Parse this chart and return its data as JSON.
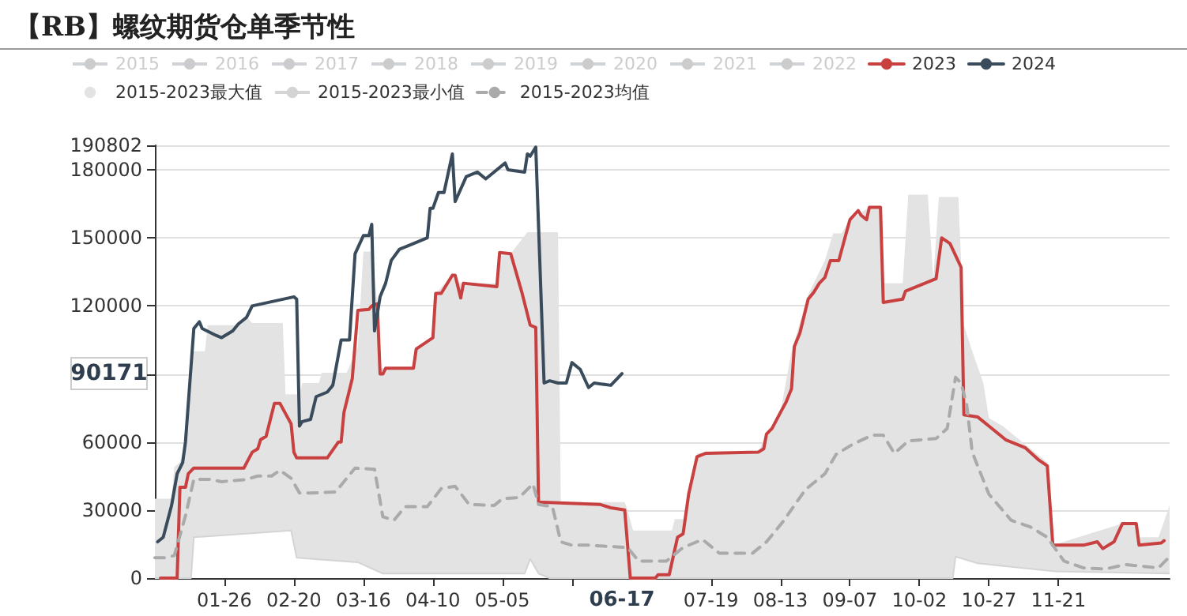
{
  "chart_data": {
    "type": "line",
    "title": "【RB】螺纹期货仓单季节性",
    "xlim": [
      "--01-01",
      "--12-31"
    ],
    "xticks": [
      {
        "value": "--01-26",
        "label": "01-26"
      },
      {
        "value": "--02-20",
        "label": "02-20"
      },
      {
        "value": "--03-16",
        "label": "03-16"
      },
      {
        "value": "--04-10",
        "label": "04-10"
      },
      {
        "value": "--05-05",
        "label": "05-05"
      },
      {
        "value": "--05-30",
        "label": null
      },
      {
        "value": "--07-19",
        "label": "07-19"
      },
      {
        "value": "--08-13",
        "label": "08-13"
      },
      {
        "value": "--09-07",
        "label": "09-07"
      },
      {
        "value": "--10-02",
        "label": "10-02"
      },
      {
        "value": "--10-27",
        "label": "10-27"
      },
      {
        "value": "--11-21",
        "label": "11-21"
      }
    ],
    "ylim": [
      0,
      190802
    ],
    "yticks": [
      0,
      30000,
      60000,
      {
        "value": 90000,
        "label": null
      },
      120000,
      150000,
      180000,
      190802
    ],
    "grid": "y",
    "legend": "top",
    "marker": "none",
    "annotations": [
      "90171",
      "06-17"
    ],
    "series": [
      {
        "name": "2015",
        "color": "#cccccc"
      },
      {
        "name": "2016",
        "color": "#cccccc"
      },
      {
        "name": "2017",
        "color": "#cccccc"
      },
      {
        "name": "2018",
        "color": "#cccccc"
      },
      {
        "name": "2019",
        "color": "#cccccc"
      },
      {
        "name": "2020",
        "color": "#cccccc"
      },
      {
        "name": "2021",
        "color": "#cccccc"
      },
      {
        "name": "2022",
        "color": "#cccccc"
      },
      {
        "name": "2023",
        "color": "#c94040",
        "x": [
          "--01-03",
          "--01-09",
          "--01-10",
          "--01-12",
          "--01-13",
          "--01-15",
          "--02-02",
          "--02-05",
          "--02-07",
          "--02-08",
          "--02-10",
          "--02-13",
          "--02-15",
          "--02-19",
          "--02-20",
          "--02-21",
          "--03-03",
          "--03-07",
          "--03-08",
          "--03-09",
          "--03-12",
          "--03-14",
          "--03-18",
          "--03-19",
          "--03-21",
          "--03-22",
          "--03-23",
          "--03-24",
          "--04-03",
          "--04-04",
          "--04-10",
          "--04-11",
          "--04-13",
          "--04-17",
          "--04-18",
          "--04-20",
          "--04-21",
          "--05-03",
          "--05-04",
          "--05-08",
          "--05-12",
          "--05-15",
          "--05-17",
          "--05-18",
          "--06-09",
          "--06-13",
          "--06-18",
          "--06-20",
          "--06-29",
          "--06-30",
          "--07-04",
          "--07-07",
          "--07-09",
          "--07-11",
          "--07-14",
          "--07-17",
          "--08-05",
          "--08-07",
          "--08-08",
          "--08-10",
          "--08-13",
          "--08-15",
          "--08-17",
          "--08-18",
          "--08-20",
          "--08-23",
          "--08-25",
          "--08-27",
          "--08-29",
          "--08-31",
          "--09-03",
          "--09-05",
          "--09-07",
          "--09-10",
          "--09-11",
          "--09-13",
          "--09-14",
          "--09-18",
          "--09-19",
          "--09-26",
          "--09-27",
          "--10-08",
          "--10-10",
          "--10-13",
          "--10-17",
          "--10-18",
          "--10-23",
          "--10-27",
          "--11-02",
          "--11-05",
          "--11-09",
          "--11-14",
          "--11-17",
          "--11-19",
          "--11-30",
          "--12-05",
          "--12-07",
          "--12-11",
          "--12-14",
          "--12-19",
          "--12-20",
          "--12-28",
          "--12-29"
        ],
        "values": [
          0,
          0,
          40000,
          40000,
          46000,
          48500,
          48500,
          55500,
          57000,
          61000,
          62500,
          77000,
          77000,
          68000,
          55500,
          53000,
          53000,
          60000,
          60000,
          73000,
          88000,
          118000,
          118500,
          120000,
          121000,
          90000,
          90000,
          92500,
          92500,
          101000,
          106000,
          125500,
          125500,
          133500,
          133500,
          123500,
          130000,
          128500,
          143500,
          143000,
          126000,
          111500,
          110500,
          33500,
          32500,
          31000,
          30000,
          0,
          0,
          1500,
          1500,
          18000,
          19500,
          37000,
          53500,
          55000,
          55500,
          57000,
          63500,
          66000,
          73000,
          77500,
          83500,
          102000,
          108000,
          123000,
          126000,
          130000,
          132500,
          140000,
          140000,
          149000,
          158000,
          162000,
          160000,
          158000,
          163500,
          163500,
          121500,
          123000,
          126500,
          132000,
          150000,
          147500,
          137000,
          72000,
          71000,
          67000,
          61000,
          59500,
          57500,
          52000,
          49500,
          14500,
          14500,
          16000,
          13000,
          16000,
          24000,
          24000,
          14500,
          15500,
          16500
        ]
      },
      {
        "name": "2024",
        "color": "#3a4b5c",
        "x": [
          "--01-02",
          "--01-04",
          "--01-07",
          "--01-09",
          "--01-11",
          "--01-12",
          "--01-15",
          "--01-17",
          "--01-18",
          "--01-23",
          "--01-25",
          "--01-29",
          "--01-31",
          "--02-03",
          "--02-05",
          "--02-20",
          "--02-21",
          "--02-22",
          "--02-23",
          "--02-26",
          "--02-28",
          "--03-03",
          "--03-05",
          "--03-08",
          "--03-11",
          "--03-13",
          "--03-16",
          "--03-18",
          "--03-19",
          "--03-20",
          "--03-22",
          "--03-24",
          "--03-26",
          "--03-29",
          "--04-02",
          "--04-08",
          "--04-09",
          "--04-10",
          "--04-12",
          "--04-14",
          "--04-17",
          "--04-18",
          "--04-22",
          "--04-26",
          "--04-29",
          "--05-06",
          "--05-07",
          "--05-13",
          "--05-14",
          "--05-15",
          "--05-17",
          "--05-20",
          "--05-22",
          "--05-25",
          "--05-28",
          "--05-30",
          "--06-02",
          "--06-05",
          "--06-07",
          "--06-13",
          "--06-17"
        ],
        "values": [
          16000,
          18000,
          32000,
          46000,
          51000,
          60000,
          110000,
          113000,
          110000,
          107000,
          106000,
          109000,
          112000,
          115000,
          120000,
          124000,
          123000,
          67000,
          69000,
          70000,
          80000,
          82000,
          85000,
          105000,
          105000,
          143000,
          151000,
          151000,
          156000,
          109000,
          124000,
          130000,
          140000,
          145000,
          147000,
          150000,
          163000,
          163000,
          170000,
          170000,
          187000,
          166000,
          177000,
          179000,
          176000,
          183000,
          180000,
          179000,
          187000,
          186000,
          190000,
          86000,
          87000,
          86000,
          86000,
          95000,
          92000,
          84000,
          86000,
          85000,
          90171
        ]
      },
      {
        "name": "2015-2023最大值",
        "type": "area",
        "color": "#e3e3e3",
        "x": [
          "--01-01",
          "--01-07",
          "--01-08",
          "--01-10",
          "--01-11",
          "--01-15",
          "--01-19",
          "--01-20",
          "--02-01",
          "--02-03",
          "--02-05",
          "--02-16",
          "--02-17",
          "--02-22",
          "--02-23",
          "--02-29",
          "--03-01",
          "--03-10",
          "--03-14",
          "--03-16",
          "--03-19",
          "--03-21",
          "--03-22",
          "--04-03",
          "--04-04",
          "--04-10",
          "--04-11",
          "--04-17",
          "--04-20",
          "--05-03",
          "--05-04",
          "--05-08",
          "--05-14",
          "--05-25",
          "--05-26",
          "--06-18",
          "--06-19",
          "--06-21",
          "--07-05",
          "--07-06",
          "--07-10",
          "--07-11",
          "--07-14",
          "--08-05",
          "--08-08",
          "--08-13",
          "--08-17",
          "--08-23",
          "--08-29",
          "--09-01",
          "--09-04",
          "--09-07",
          "--09-14",
          "--09-18",
          "--09-19",
          "--09-26",
          "--09-28",
          "--10-05",
          "--10-07",
          "--10-09",
          "--10-16",
          "--10-18",
          "--10-21",
          "--10-25",
          "--10-27",
          "--11-01",
          "--11-17",
          "--11-19",
          "--12-14",
          "--12-19",
          "--12-20",
          "--12-27",
          "--12-31"
        ],
        "values": [
          35000,
          35000,
          49000,
          51000,
          55500,
          100000,
          100000,
          111500,
          111500,
          115000,
          112500,
          112500,
          81000,
          81000,
          86000,
          86000,
          90500,
          90500,
          102000,
          144000,
          144000,
          121000,
          92500,
          92500,
          101000,
          106000,
          125500,
          133500,
          130000,
          130000,
          143500,
          143000,
          152500,
          152500,
          33500,
          33500,
          30000,
          21000,
          21000,
          26000,
          26000,
          40000,
          55000,
          55500,
          63500,
          73000,
          100000,
          125000,
          140000,
          152000,
          152000,
          158000,
          163500,
          163500,
          130000,
          130000,
          169000,
          169000,
          132000,
          168000,
          168000,
          111500,
          100000,
          86000,
          70500,
          67000,
          51000,
          14500,
          24000,
          24000,
          18000,
          18000,
          32000
        ]
      },
      {
        "name": "2015-2023最小值",
        "type": "area",
        "color": "#d4d4d4",
        "x": [
          "--01-01",
          "--01-14",
          "--01-15",
          "--02-19",
          "--02-21",
          "--03-14",
          "--03-23",
          "--05-13",
          "--05-15",
          "--05-18",
          "--05-22",
          "--10-14",
          "--10-15",
          "--10-23",
          "--11-20",
          "--12-31"
        ],
        "values": [
          0,
          0,
          18000,
          21000,
          9000,
          7000,
          2000,
          2000,
          8500,
          2000,
          0,
          0,
          9500,
          6500,
          3000,
          2000
        ]
      },
      {
        "name": "2015-2023均值",
        "color": "#aaaaaa",
        "line_style": "dashed",
        "x": [
          "--01-01",
          "--01-05",
          "--01-08",
          "--01-12",
          "--01-15",
          "--01-21",
          "--01-25",
          "--02-03",
          "--02-07",
          "--02-12",
          "--02-15",
          "--02-19",
          "--02-22",
          "--02-26",
          "--03-06",
          "--03-10",
          "--03-13",
          "--03-20",
          "--03-23",
          "--03-27",
          "--03-31",
          "--04-08",
          "--04-13",
          "--04-18",
          "--04-23",
          "--05-02",
          "--05-05",
          "--05-11",
          "--05-16",
          "--05-18",
          "--05-23",
          "--05-26",
          "--05-30",
          "--06-05",
          "--06-19",
          "--06-23",
          "--07-03",
          "--07-09",
          "--07-16",
          "--07-22",
          "--08-03",
          "--08-08",
          "--08-14",
          "--08-22",
          "--08-29",
          "--09-02",
          "--09-08",
          "--09-15",
          "--09-19",
          "--09-23",
          "--09-28",
          "--10-08",
          "--10-12",
          "--10-15",
          "--10-17",
          "--10-19",
          "--10-21",
          "--10-27",
          "--11-04",
          "--11-11",
          "--11-17",
          "--11-23",
          "--11-30",
          "--12-08",
          "--12-15",
          "--12-27",
          "--12-31"
        ],
        "values": [
          9000,
          9000,
          10000,
          27500,
          43500,
          43500,
          42500,
          43500,
          45000,
          45000,
          47500,
          44000,
          37500,
          37500,
          38000,
          44000,
          48500,
          48000,
          27000,
          25500,
          31500,
          31500,
          39500,
          40500,
          32500,
          32000,
          35000,
          35500,
          41500,
          32500,
          31500,
          16000,
          14500,
          14500,
          13500,
          7500,
          7500,
          13500,
          17000,
          11000,
          11000,
          16000,
          25000,
          39000,
          46000,
          54500,
          59000,
          63000,
          63000,
          55000,
          60500,
          61500,
          66000,
          88500,
          86000,
          76500,
          55500,
          37000,
          25500,
          22500,
          18000,
          7500,
          4500,
          4000,
          6000,
          4500,
          9500
        ]
      }
    ]
  }
}
